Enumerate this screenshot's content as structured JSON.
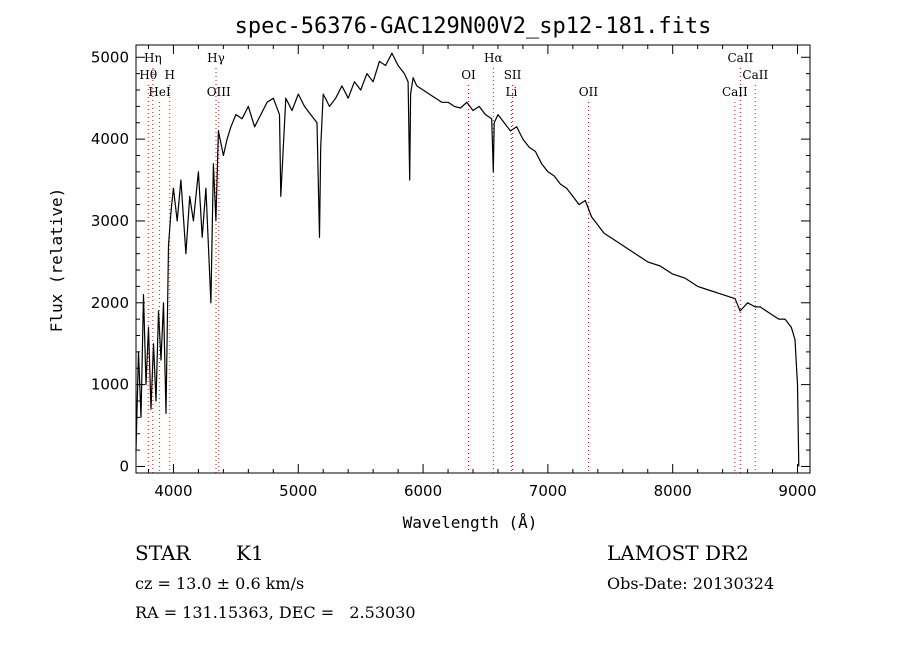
{
  "chart_data": {
    "type": "line",
    "title": "spec-56376-GAC129N00V2_sp12-181.fits",
    "xlabel": "Wavelength (Å)",
    "ylabel": "Flux (relative)",
    "xlim": [
      3700,
      9100
    ],
    "ylim": [
      -80,
      5150
    ],
    "xticks": [
      4000,
      5000,
      6000,
      7000,
      8000,
      9000
    ],
    "yticks": [
      0,
      1000,
      2000,
      3000,
      4000,
      5000
    ],
    "grid": false,
    "line_color": "#000000",
    "marker_color": "#ff0000",
    "series": [
      {
        "x": [
          3700,
          3720,
          3740,
          3760,
          3780,
          3800,
          3820,
          3840,
          3860,
          3880,
          3900,
          3920,
          3940,
          3960,
          3980,
          4000,
          4030,
          4060,
          4100,
          4130,
          4160,
          4200,
          4230,
          4260,
          4300,
          4320,
          4340,
          4360,
          4400,
          4430,
          4460,
          4500,
          4550,
          4600,
          4650,
          4700,
          4750,
          4800,
          4850,
          4860,
          4900,
          4950,
          5000,
          5050,
          5100,
          5150,
          5170,
          5180,
          5200,
          5250,
          5300,
          5350,
          5400,
          5450,
          5500,
          5550,
          5600,
          5650,
          5700,
          5750,
          5800,
          5850,
          5880,
          5893,
          5900,
          5920,
          5950,
          6000,
          6050,
          6100,
          6150,
          6200,
          6250,
          6300,
          6350,
          6400,
          6450,
          6500,
          6550,
          6563,
          6570,
          6600,
          6650,
          6700,
          6750,
          6800,
          6850,
          6900,
          6950,
          7000,
          7050,
          7100,
          7150,
          7200,
          7250,
          7300,
          7350,
          7400,
          7450,
          7500,
          7600,
          7700,
          7800,
          7900,
          8000,
          8100,
          8200,
          8300,
          8400,
          8500,
          8540,
          8600,
          8660,
          8700,
          8800,
          8850,
          8900,
          8950,
          8980,
          9000,
          9010
        ],
        "y": [
          200,
          1400,
          600,
          2100,
          1000,
          1700,
          700,
          1500,
          800,
          1900,
          1300,
          2000,
          650,
          2700,
          3100,
          3400,
          3000,
          3500,
          2600,
          3300,
          3000,
          3600,
          2800,
          3400,
          2000,
          3700,
          3000,
          4100,
          3800,
          4000,
          4150,
          4300,
          4250,
          4400,
          4150,
          4300,
          4450,
          4500,
          4300,
          3300,
          4500,
          4350,
          4550,
          4400,
          4300,
          4200,
          2800,
          3900,
          4550,
          4400,
          4500,
          4650,
          4500,
          4700,
          4600,
          4800,
          4700,
          4950,
          4900,
          5050,
          4900,
          4800,
          4700,
          3500,
          4550,
          4750,
          4650,
          4600,
          4550,
          4500,
          4450,
          4450,
          4400,
          4380,
          4450,
          4350,
          4400,
          4300,
          4250,
          3600,
          4200,
          4300,
          4200,
          4100,
          4150,
          4000,
          3900,
          3850,
          3700,
          3600,
          3550,
          3450,
          3400,
          3300,
          3200,
          3250,
          3050,
          2950,
          2850,
          2800,
          2700,
          2600,
          2500,
          2450,
          2350,
          2300,
          2200,
          2150,
          2100,
          2050,
          1900,
          2000,
          1950,
          1950,
          1850,
          1800,
          1800,
          1700,
          1550,
          1000,
          0
        ]
      }
    ],
    "lines": [
      {
        "label": "Hη",
        "x": 3835,
        "row": 1
      },
      {
        "label": "Hθ",
        "x": 3798,
        "row": 2
      },
      {
        "label": "H",
        "x": 3970,
        "row": 2
      },
      {
        "label": "HeI",
        "x": 3889,
        "row": 3
      },
      {
        "label": "Hγ",
        "x": 4341,
        "row": 1
      },
      {
        "label": "OIII",
        "x": 4363,
        "row": 3
      },
      {
        "label": "Hα",
        "x": 6563,
        "row": 1
      },
      {
        "label": "OI",
        "x": 6364,
        "row": 2
      },
      {
        "label": "SII",
        "x": 6717,
        "row": 2
      },
      {
        "label": "Li",
        "x": 6708,
        "row": 3
      },
      {
        "label": "OII",
        "x": 7325,
        "row": 3
      },
      {
        "label": "CaII",
        "x": 8542,
        "row": 1
      },
      {
        "label": "CaII",
        "x": 8662,
        "row": 2
      },
      {
        "label": "CaII",
        "x": 8498,
        "row": 3
      }
    ]
  },
  "footer": {
    "class_label": "STAR",
    "subclass": "K1",
    "survey": "LAMOST DR2",
    "cz": "cz = 13.0 ± 0.6 km/s",
    "obs_date": "Obs-Date: 20130324",
    "coords": "RA = 131.15363, DEC =   2.53030"
  }
}
